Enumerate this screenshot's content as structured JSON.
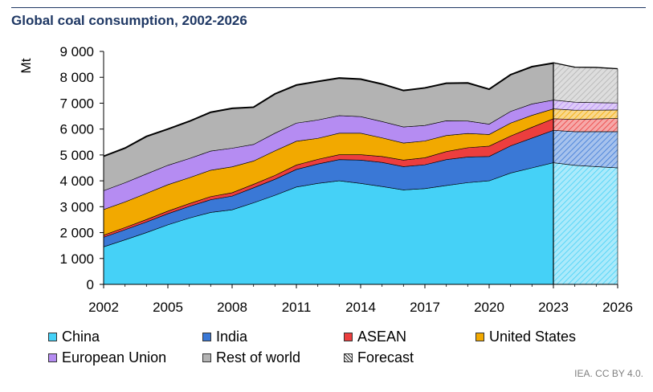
{
  "title": "Global coal consumption, 2002-2026",
  "credit": "IEA. CC BY 4.0.",
  "chart_data": {
    "type": "area",
    "stacked": true,
    "title": "Global coal consumption, 2002-2026",
    "ylabel": "Mt",
    "xlabel": "",
    "ylim": [
      0,
      9000
    ],
    "yticks": [
      0,
      1000,
      2000,
      3000,
      4000,
      5000,
      6000,
      7000,
      8000,
      9000
    ],
    "ytick_labels": [
      "0",
      "1 000",
      "2 000",
      "3 000",
      "4 000",
      "5 000",
      "6 000",
      "7 000",
      "8 000",
      "9 000"
    ],
    "xticks": [
      2002,
      2005,
      2008,
      2011,
      2014,
      2017,
      2020,
      2023,
      2026
    ],
    "xtick_labels": [
      "2002",
      "2005",
      "2008",
      "2011",
      "2014",
      "2017",
      "2020",
      "2023",
      "2026"
    ],
    "forecast_start": 2023,
    "x": [
      2002,
      2003,
      2004,
      2005,
      2006,
      2007,
      2008,
      2009,
      2010,
      2011,
      2012,
      2013,
      2014,
      2015,
      2016,
      2017,
      2018,
      2019,
      2020,
      2021,
      2022,
      2023,
      2024,
      2025,
      2026
    ],
    "series": [
      {
        "name": "China",
        "color": "#45d1f7",
        "values": [
          1450,
          1720,
          2000,
          2300,
          2560,
          2780,
          2880,
          3150,
          3440,
          3760,
          3900,
          4000,
          3900,
          3780,
          3650,
          3700,
          3820,
          3930,
          4000,
          4300,
          4500,
          4700,
          4600,
          4550,
          4500
        ]
      },
      {
        "name": "India",
        "color": "#3a78d6",
        "values": [
          370,
          390,
          410,
          430,
          450,
          490,
          530,
          580,
          620,
          680,
          750,
          820,
          900,
          930,
          900,
          920,
          1000,
          990,
          940,
          1050,
          1150,
          1250,
          1300,
          1350,
          1400
        ]
      },
      {
        "name": "ASEAN",
        "color": "#ec3e3e",
        "values": [
          80,
          85,
          95,
          100,
          110,
          120,
          130,
          135,
          150,
          170,
          180,
          190,
          210,
          230,
          250,
          270,
          310,
          360,
          400,
          380,
          420,
          450,
          470,
          490,
          510
        ]
      },
      {
        "name": "United States",
        "color": "#f2a900",
        "values": [
          990,
          990,
          1010,
          1020,
          1000,
          1020,
          1000,
          900,
          950,
          920,
          810,
          830,
          830,
          720,
          660,
          650,
          620,
          550,
          450,
          500,
          460,
          380,
          360,
          340,
          330
        ]
      },
      {
        "name": "European Union",
        "color": "#b58cf2",
        "values": [
          730,
          740,
          750,
          750,
          740,
          740,
          720,
          640,
          680,
          700,
          710,
          680,
          640,
          630,
          620,
          600,
          570,
          480,
          400,
          450,
          440,
          340,
          310,
          290,
          270
        ]
      },
      {
        "name": "Rest of world",
        "color": "#b3b3b3",
        "values": [
          1330,
          1340,
          1450,
          1400,
          1440,
          1500,
          1540,
          1440,
          1520,
          1470,
          1490,
          1450,
          1450,
          1450,
          1410,
          1450,
          1450,
          1470,
          1350,
          1420,
          1440,
          1430,
          1340,
          1350,
          1310
        ]
      }
    ],
    "legend": [
      {
        "label": "China",
        "color": "#45d1f7",
        "pattern": false
      },
      {
        "label": "India",
        "color": "#3a78d6",
        "pattern": false
      },
      {
        "label": "ASEAN",
        "color": "#ec3e3e",
        "pattern": false
      },
      {
        "label": "United States",
        "color": "#f2a900",
        "pattern": false
      },
      {
        "label": "European Union",
        "color": "#b58cf2",
        "pattern": false
      },
      {
        "label": "Rest of world",
        "color": "#b3b3b3",
        "pattern": false
      },
      {
        "label": "Forecast",
        "color": "#ffffff",
        "pattern": true
      }
    ],
    "legend_placement": "bottom",
    "grid": false
  }
}
